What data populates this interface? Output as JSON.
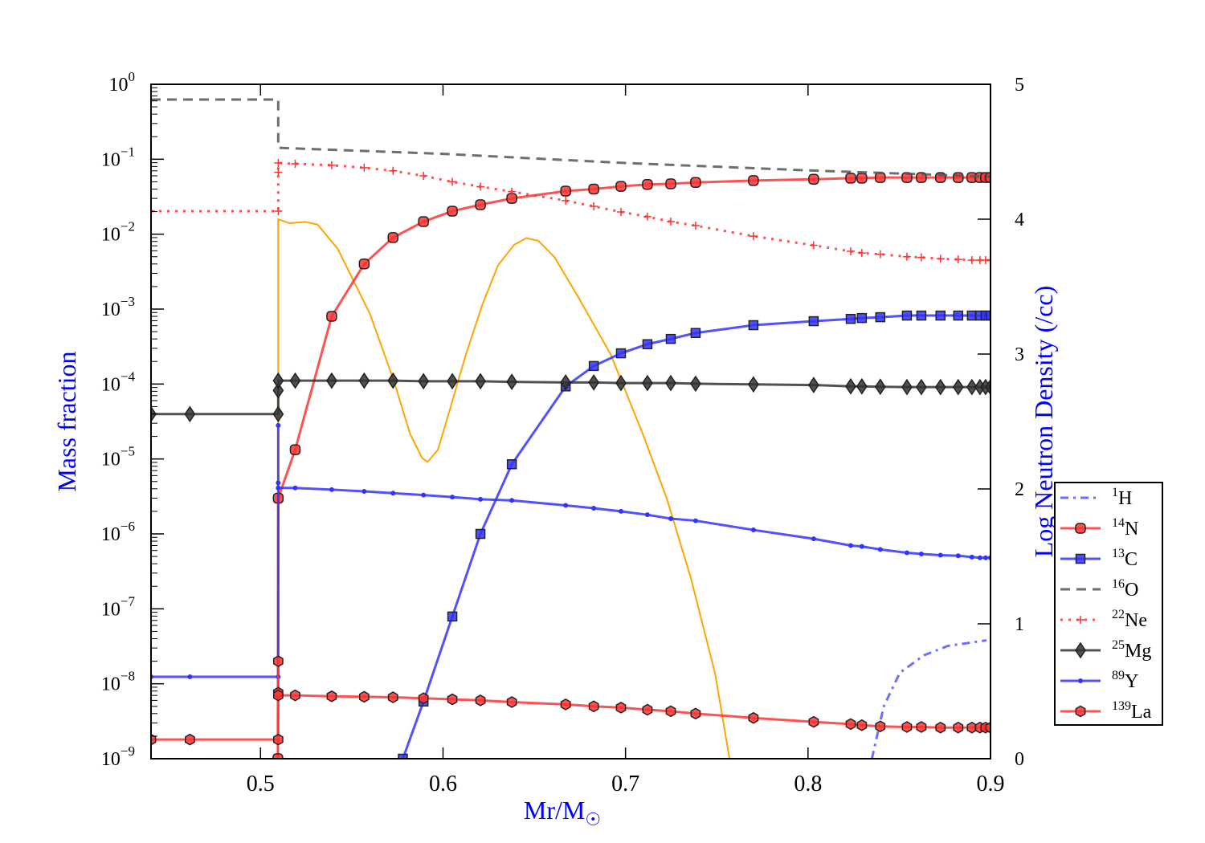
{
  "chart_data": {
    "type": "line",
    "xlabel": "Mr/M",
    "xlabel_sub": "☉",
    "ylabel": "Mass fraction",
    "y2label": "Log Neutron Density (/cc)",
    "xlim": [
      0.44,
      0.9
    ],
    "ylim": [
      1e-09,
      1
    ],
    "yscale": "log",
    "y2lim": [
      0,
      5
    ],
    "xticks": [
      "0.5",
      "0.6",
      "0.7",
      "0.8",
      "0.9"
    ],
    "yticks": [
      {
        "base": "10",
        "exp": "0"
      },
      {
        "base": "10",
        "exp": "−1"
      },
      {
        "base": "10",
        "exp": "−2"
      },
      {
        "base": "10",
        "exp": "−3"
      },
      {
        "base": "10",
        "exp": "−4"
      },
      {
        "base": "10",
        "exp": "−5"
      },
      {
        "base": "10",
        "exp": "−6"
      },
      {
        "base": "10",
        "exp": "−7"
      },
      {
        "base": "10",
        "exp": "−8"
      },
      {
        "base": "10",
        "exp": "−9"
      }
    ],
    "y2ticks": [
      "0",
      "1",
      "2",
      "3",
      "4",
      "5"
    ],
    "legend_position": "center-right outside",
    "colors": {
      "red": "#ff3333",
      "blue": "#3333ff",
      "dark": "#333333",
      "orange": "#ffa500",
      "axis_label": "#0000ff"
    },
    "series": [
      {
        "name": "1H",
        "sup": "1",
        "el": "H",
        "style": "dashdot",
        "color": "#5555ff",
        "marker": "none",
        "points": [
          [
            0.835,
            1e-09
          ],
          [
            0.8415,
            5e-09
          ],
          [
            0.8503,
            1.4e-08
          ],
          [
            0.8635,
            2.4e-08
          ],
          [
            0.8767,
            3.2e-08
          ],
          [
            0.8978,
            3.8e-08
          ]
        ]
      },
      {
        "name": "14N",
        "sup": "14",
        "el": "N",
        "style": "solid",
        "color": "#ff3333",
        "marker": "circle",
        "points": [
          [
            0.5095,
            1e-09
          ],
          [
            0.5097,
            3e-06
          ],
          [
            0.519,
            1.33e-05
          ],
          [
            0.539,
            0.0008
          ],
          [
            0.5568,
            0.004
          ],
          [
            0.5726,
            0.009
          ],
          [
            0.5893,
            0.0147
          ],
          [
            0.6051,
            0.0203
          ],
          [
            0.6205,
            0.0247
          ],
          [
            0.6377,
            0.03
          ],
          [
            0.6672,
            0.0376
          ],
          [
            0.6826,
            0.04
          ],
          [
            0.6975,
            0.0435
          ],
          [
            0.712,
            0.046
          ],
          [
            0.7248,
            0.047
          ],
          [
            0.7384,
            0.049
          ],
          [
            0.7701,
            0.052
          ],
          [
            0.8031,
            0.054
          ],
          [
            0.8234,
            0.056
          ],
          [
            0.8295,
            0.056
          ],
          [
            0.8396,
            0.057
          ],
          [
            0.8542,
            0.057
          ],
          [
            0.8621,
            0.057
          ],
          [
            0.8726,
            0.057
          ],
          [
            0.8823,
            0.057
          ],
          [
            0.8898,
            0.057
          ],
          [
            0.8942,
            0.057
          ],
          [
            0.8973,
            0.057
          ],
          [
            0.9,
            0.057
          ]
        ]
      },
      {
        "name": "13C",
        "sup": "13",
        "el": "C",
        "style": "solid",
        "color": "#3333ff",
        "marker": "square",
        "points": [
          [
            0.578,
            1e-09
          ],
          [
            0.5893,
            5.8e-09
          ],
          [
            0.6051,
            7.9e-08
          ],
          [
            0.6205,
            1e-06
          ],
          [
            0.6377,
            8.5e-06
          ],
          [
            0.6672,
            9.3e-05
          ],
          [
            0.6826,
            0.000174
          ],
          [
            0.6975,
            0.000257
          ],
          [
            0.712,
            0.00034
          ],
          [
            0.7248,
            0.0004
          ],
          [
            0.7384,
            0.00048
          ],
          [
            0.7701,
            0.00061
          ],
          [
            0.8031,
            0.00069
          ],
          [
            0.8234,
            0.00074
          ],
          [
            0.8295,
            0.00076
          ],
          [
            0.8396,
            0.00078
          ],
          [
            0.8542,
            0.00082
          ],
          [
            0.8621,
            0.00082
          ],
          [
            0.8726,
            0.00082
          ],
          [
            0.8823,
            0.00082
          ],
          [
            0.8898,
            0.00082
          ],
          [
            0.8942,
            0.00082
          ],
          [
            0.8973,
            0.00082
          ],
          [
            0.9,
            0.00082
          ]
        ]
      },
      {
        "name": "16O",
        "sup": "16",
        "el": "O",
        "style": "dashed",
        "color": "#555555",
        "marker": "none",
        "points": [
          [
            0.44,
            0.626
          ],
          [
            0.5097,
            0.626
          ],
          [
            0.5097,
            0.142
          ],
          [
            0.6,
            0.118
          ],
          [
            0.7,
            0.089
          ],
          [
            0.8,
            0.071
          ],
          [
            0.9,
            0.0586
          ]
        ]
      },
      {
        "name": "22Ne",
        "sup": "22",
        "el": "Ne",
        "style": "dotted",
        "color": "#ff3333",
        "marker": "plus",
        "points": [
          [
            0.44,
            0.0203
          ],
          [
            0.5097,
            0.0203
          ],
          [
            0.5097,
            0.067
          ],
          [
            0.5097,
            0.089
          ],
          [
            0.519,
            0.087
          ],
          [
            0.539,
            0.083
          ],
          [
            0.5568,
            0.077
          ],
          [
            0.5726,
            0.07
          ],
          [
            0.5893,
            0.06
          ],
          [
            0.6051,
            0.05
          ],
          [
            0.6205,
            0.043
          ],
          [
            0.6377,
            0.037
          ],
          [
            0.6672,
            0.028
          ],
          [
            0.6826,
            0.0235
          ],
          [
            0.6975,
            0.0198
          ],
          [
            0.712,
            0.0171
          ],
          [
            0.7248,
            0.0147
          ],
          [
            0.7384,
            0.013
          ],
          [
            0.7701,
            0.0094
          ],
          [
            0.8031,
            0.0071
          ],
          [
            0.8234,
            0.0059
          ],
          [
            0.8295,
            0.0056
          ],
          [
            0.8396,
            0.0054
          ],
          [
            0.8542,
            0.005
          ],
          [
            0.8621,
            0.0049
          ],
          [
            0.8726,
            0.0047
          ],
          [
            0.8823,
            0.0046
          ],
          [
            0.8898,
            0.0045
          ],
          [
            0.8942,
            0.0045
          ],
          [
            0.8973,
            0.0045
          ],
          [
            0.9,
            0.0045
          ]
        ]
      },
      {
        "name": "25Mg",
        "sup": "25",
        "el": "Mg",
        "style": "solid",
        "color": "#333333",
        "marker": "diamond",
        "points": [
          [
            0.44,
            3.97e-05
          ],
          [
            0.4613,
            3.97e-05
          ],
          [
            0.5097,
            3.97e-05
          ],
          [
            0.5097,
            8.2e-05
          ],
          [
            0.5097,
            0.000111
          ],
          [
            0.519,
            0.000111
          ],
          [
            0.539,
            0.000111
          ],
          [
            0.5568,
            0.000111
          ],
          [
            0.5726,
            0.000111
          ],
          [
            0.5893,
            0.000109
          ],
          [
            0.6051,
            0.000109
          ],
          [
            0.6205,
            0.000109
          ],
          [
            0.6377,
            0.000107
          ],
          [
            0.6672,
            0.000105
          ],
          [
            0.6826,
            0.000105
          ],
          [
            0.6975,
            0.000103
          ],
          [
            0.712,
            0.000103
          ],
          [
            0.7248,
            0.000103
          ],
          [
            0.7384,
            0.000101
          ],
          [
            0.7701,
            9.9e-05
          ],
          [
            0.8031,
            9.7e-05
          ],
          [
            0.8234,
            9.3e-05
          ],
          [
            0.8295,
            9.3e-05
          ],
          [
            0.8396,
            9.2e-05
          ],
          [
            0.8542,
            9.1e-05
          ],
          [
            0.8621,
            9.1e-05
          ],
          [
            0.8726,
            9.1e-05
          ],
          [
            0.8823,
            9.1e-05
          ],
          [
            0.8898,
            9.1e-05
          ],
          [
            0.8942,
            9.1e-05
          ],
          [
            0.8973,
            9.1e-05
          ],
          [
            0.9,
            9.1e-05
          ]
        ]
      },
      {
        "name": "89Y",
        "sup": "89",
        "el": "Y",
        "style": "solid",
        "color": "#3333ff",
        "marker": "dot",
        "points": [
          [
            0.44,
            1.24e-08
          ],
          [
            0.4613,
            1.24e-08
          ],
          [
            0.5097,
            1.24e-08
          ],
          [
            0.5097,
            2.8e-05
          ],
          [
            0.5097,
            4.8e-06
          ],
          [
            0.5097,
            4.1e-06
          ],
          [
            0.519,
            4.1e-06
          ],
          [
            0.539,
            3.9e-06
          ],
          [
            0.5568,
            3.7e-06
          ],
          [
            0.5726,
            3.5e-06
          ],
          [
            0.5893,
            3.3e-06
          ],
          [
            0.6051,
            3.1e-06
          ],
          [
            0.6205,
            2.9e-06
          ],
          [
            0.6377,
            2.8e-06
          ],
          [
            0.6672,
            2.4e-06
          ],
          [
            0.6826,
            2.2e-06
          ],
          [
            0.6975,
            2e-06
          ],
          [
            0.712,
            1.8e-06
          ],
          [
            0.7248,
            1.6e-06
          ],
          [
            0.7384,
            1.5e-06
          ],
          [
            0.7701,
            1.13e-06
          ],
          [
            0.8031,
            8.6e-07
          ],
          [
            0.8234,
            7e-07
          ],
          [
            0.8295,
            6.8e-07
          ],
          [
            0.8396,
            6.2e-07
          ],
          [
            0.8542,
            5.6e-07
          ],
          [
            0.8621,
            5.4e-07
          ],
          [
            0.8726,
            5.2e-07
          ],
          [
            0.8823,
            5.1e-07
          ],
          [
            0.8898,
            4.9e-07
          ],
          [
            0.8942,
            4.8e-07
          ],
          [
            0.8973,
            4.8e-07
          ],
          [
            0.9,
            4.8e-07
          ]
        ]
      },
      {
        "name": "139La",
        "sup": "139",
        "el": "La",
        "style": "solid",
        "color": "#ff3333",
        "marker": "hexagon",
        "points": [
          [
            0.44,
            1.8e-09
          ],
          [
            0.4613,
            1.8e-09
          ],
          [
            0.5097,
            1.8e-09
          ],
          [
            0.5097,
            2e-08
          ],
          [
            0.5097,
            7.6e-09
          ],
          [
            0.5097,
            7e-09
          ],
          [
            0.519,
            7e-09
          ],
          [
            0.539,
            6.8e-09
          ],
          [
            0.5568,
            6.7e-09
          ],
          [
            0.5726,
            6.6e-09
          ],
          [
            0.5893,
            6.4e-09
          ],
          [
            0.6051,
            6.2e-09
          ],
          [
            0.6205,
            6e-09
          ],
          [
            0.6377,
            5.7e-09
          ],
          [
            0.6672,
            5.3e-09
          ],
          [
            0.6826,
            5e-09
          ],
          [
            0.6975,
            4.8e-09
          ],
          [
            0.712,
            4.5e-09
          ],
          [
            0.7248,
            4.3e-09
          ],
          [
            0.7384,
            4e-09
          ],
          [
            0.7701,
            3.5e-09
          ],
          [
            0.8031,
            3.1e-09
          ],
          [
            0.8234,
            2.9e-09
          ],
          [
            0.8295,
            2.8e-09
          ],
          [
            0.8396,
            2.7e-09
          ],
          [
            0.8542,
            2.65e-09
          ],
          [
            0.8621,
            2.65e-09
          ],
          [
            0.8726,
            2.6e-09
          ],
          [
            0.8823,
            2.6e-09
          ],
          [
            0.8898,
            2.6e-09
          ],
          [
            0.8942,
            2.6e-09
          ],
          [
            0.8973,
            2.6e-09
          ],
          [
            0.9,
            2.6e-09
          ]
        ]
      }
    ],
    "neutron_density": {
      "axis": "right",
      "color": "#ffa500",
      "points": [
        [
          0.5097,
          0
        ],
        [
          0.5097,
          4.0
        ],
        [
          0.5159,
          3.97
        ],
        [
          0.5247,
          3.98
        ],
        [
          0.5313,
          3.96
        ],
        [
          0.5423,
          3.78
        ],
        [
          0.5511,
          3.54
        ],
        [
          0.5599,
          3.3
        ],
        [
          0.5731,
          2.8
        ],
        [
          0.5819,
          2.41
        ],
        [
          0.5885,
          2.23
        ],
        [
          0.5915,
          2.2
        ],
        [
          0.5972,
          2.29
        ],
        [
          0.6038,
          2.59
        ],
        [
          0.6126,
          3.0
        ],
        [
          0.6214,
          3.36
        ],
        [
          0.6302,
          3.66
        ],
        [
          0.639,
          3.81
        ],
        [
          0.6456,
          3.86
        ],
        [
          0.6522,
          3.84
        ],
        [
          0.661,
          3.72
        ],
        [
          0.6742,
          3.42
        ],
        [
          0.6918,
          3.0
        ],
        [
          0.7094,
          2.41
        ],
        [
          0.7226,
          1.93
        ],
        [
          0.7358,
          1.34
        ],
        [
          0.7491,
          0.63
        ],
        [
          0.757,
          0
        ]
      ]
    }
  }
}
